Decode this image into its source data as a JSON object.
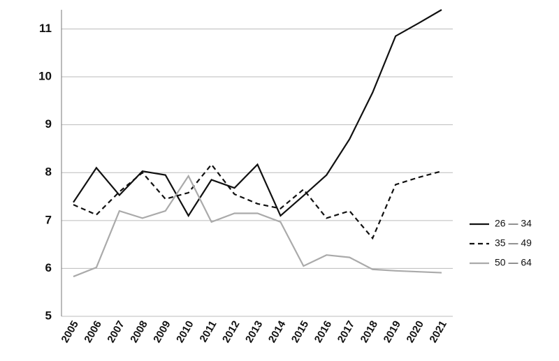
{
  "chart_data": {
    "type": "line",
    "categories": [
      "2005",
      "2006",
      "2007",
      "2008",
      "2009",
      "2010",
      "2011",
      "2012",
      "2013",
      "2014",
      "2015",
      "2016",
      "2017",
      "2018",
      "2019",
      "2020",
      "2021"
    ],
    "series": [
      {
        "name": "26 — 34",
        "color": "#111111",
        "style": "solid",
        "values": [
          7.38,
          8.1,
          7.53,
          8.03,
          7.95,
          7.1,
          7.85,
          7.68,
          8.17,
          7.1,
          7.52,
          7.95,
          8.7,
          9.67,
          10.85,
          11.12,
          11.4
        ]
      },
      {
        "name": "35 — 49",
        "color": "#111111",
        "style": "dashed",
        "values": [
          7.33,
          7.12,
          7.6,
          8.0,
          7.45,
          7.58,
          8.17,
          7.55,
          7.35,
          7.25,
          7.65,
          7.05,
          7.2,
          6.63,
          7.75,
          7.9,
          8.03
        ]
      },
      {
        "name": "50 — 64",
        "color": "#aaaaaa",
        "style": "solid",
        "values": [
          5.83,
          6.02,
          7.2,
          7.05,
          7.2,
          7.93,
          6.97,
          7.15,
          7.15,
          6.97,
          6.05,
          6.28,
          6.23,
          5.98,
          5.95,
          5.93,
          5.91
        ]
      }
    ],
    "ylim": [
      5,
      11.4
    ],
    "yticks": [
      5,
      6,
      7,
      8,
      9,
      10,
      11
    ],
    "grid": true,
    "legend": "right"
  }
}
